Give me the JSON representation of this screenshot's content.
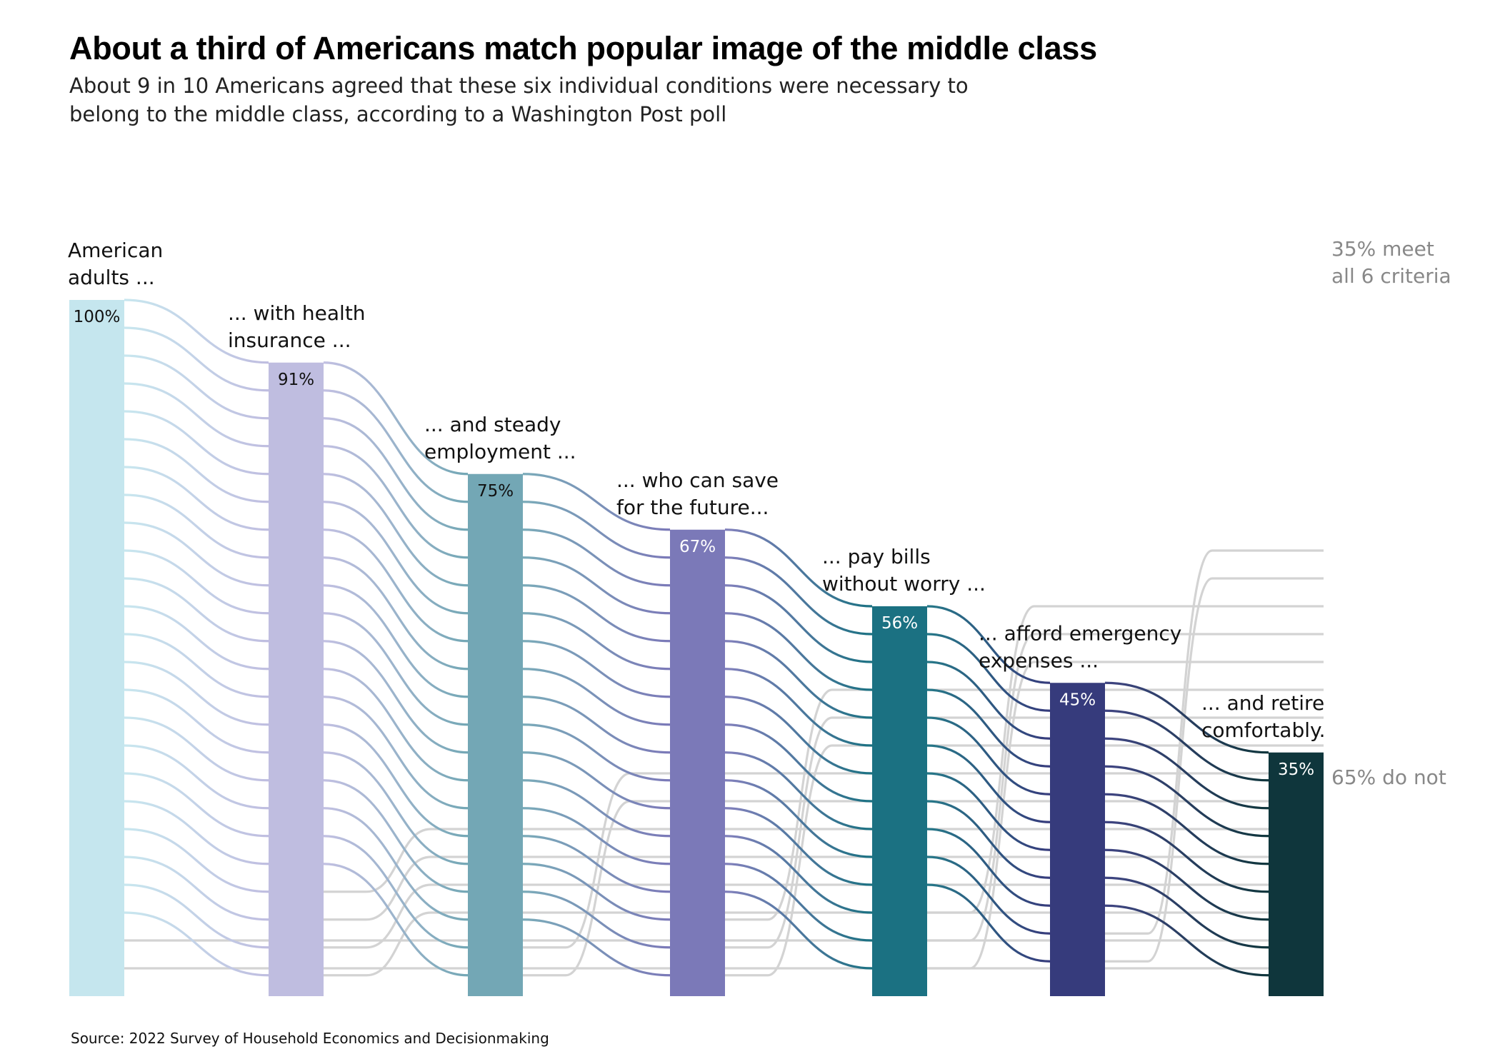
{
  "title": "About a third of Americans match popular image of the middle class",
  "subtitle": "About 9 in 10 Americans agreed that these six individual conditions were necessary to belong to the middle class, according to a Washington Post poll",
  "source": "Source: 2022 Survey of Household Economics and Decisionmaking",
  "chart_data": {
    "type": "sankey-funnel",
    "units": "percent of American adults",
    "unit_per_line": 4,
    "stages": [
      {
        "lines": [
          "American",
          "adults ..."
        ],
        "value": 100,
        "label": "100%",
        "color": "#c5e6ee",
        "label_color": "#111111"
      },
      {
        "lines": [
          "... with health",
          "insurance ..."
        ],
        "value": 91,
        "label": "91%",
        "color": "#bfbde0",
        "label_color": "#111111"
      },
      {
        "lines": [
          "... and steady",
          "employment ..."
        ],
        "value": 75,
        "label": "75%",
        "color": "#73a7b5",
        "label_color": "#111111"
      },
      {
        "lines": [
          "... who can save",
          "for the future..."
        ],
        "value": 67,
        "label": "67%",
        "color": "#7b79b8",
        "label_color": "#ffffff"
      },
      {
        "lines": [
          "... pay bills",
          "without worry ..."
        ],
        "value": 56,
        "label": "56%",
        "color": "#1b7182",
        "label_color": "#ffffff"
      },
      {
        "lines": [
          "... afford emergency",
          "expenses ..."
        ],
        "value": 45,
        "label": "45%",
        "color": "#363b7c",
        "label_color": "#ffffff"
      },
      {
        "lines": [
          "... and retire",
          "comfortably."
        ],
        "value": 35,
        "label": "35%",
        "color": "#0f363c",
        "label_color": "#ffffff"
      }
    ],
    "outcomes": [
      {
        "lines": [
          "35% meet",
          "all 6 criteria"
        ],
        "value": 35
      },
      {
        "lines": [
          "65% do not"
        ],
        "value": 65
      }
    ],
    "dropout_color": "#d3d3d3"
  }
}
